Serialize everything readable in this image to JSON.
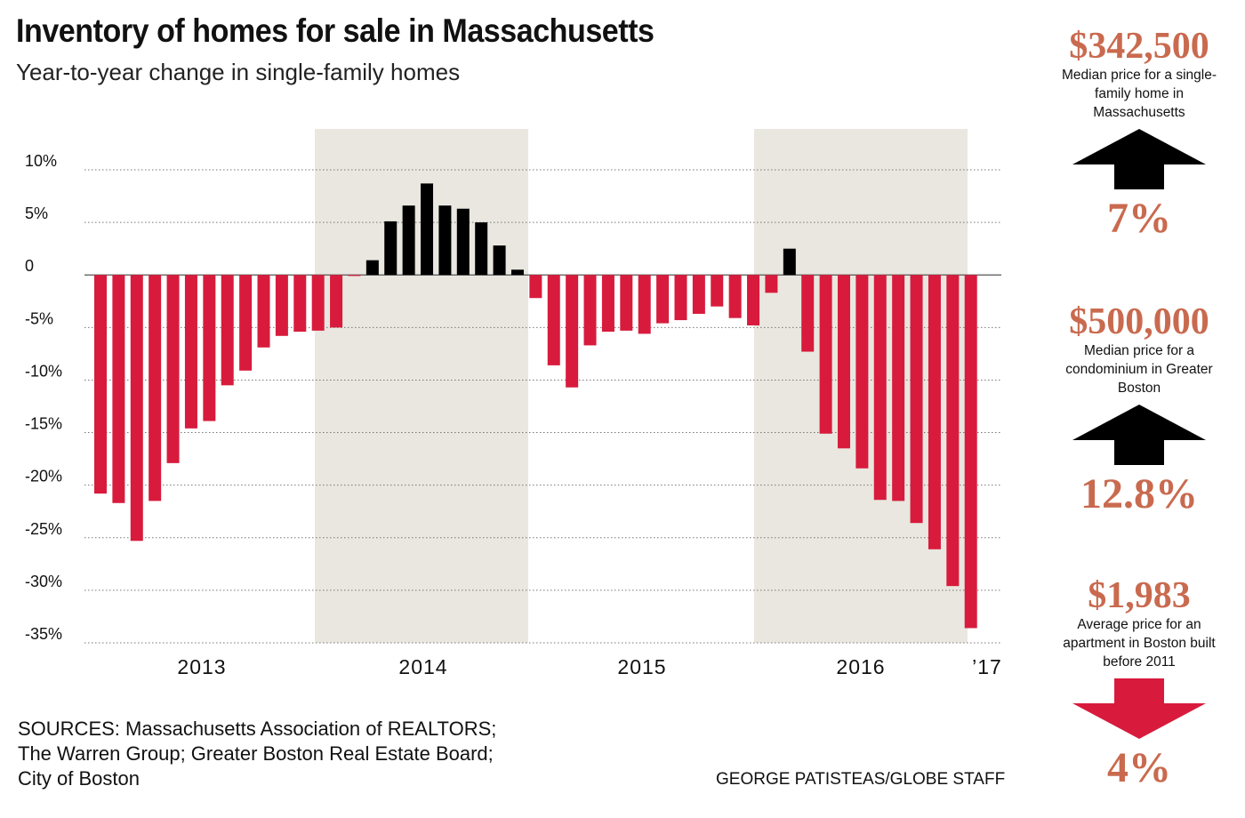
{
  "header": {
    "title": "Inventory of homes for sale in Massachusetts",
    "subtitle": "Year-to-year change in single-family homes"
  },
  "colors": {
    "negative": "#d81b3c",
    "positive": "#000000",
    "shade": "#e9e7df",
    "accent": "#c96a4f"
  },
  "chart_data": {
    "type": "bar",
    "title": "Inventory of homes for sale in Massachusetts",
    "subtitle": "Year-to-year change in single-family homes",
    "ylim": [
      -35,
      10
    ],
    "y_ticks": [
      10,
      5,
      0,
      -5,
      -10,
      -15,
      -20,
      -25,
      -30,
      -35
    ],
    "y_tick_labels": [
      "10%",
      "5%",
      "0",
      "-5%",
      "-10%",
      "-15%",
      "-20%",
      "-25%",
      "-30%",
      "-35%"
    ],
    "x_labels": [
      "2013",
      "2014",
      "2015",
      "2016",
      "’17"
    ],
    "grid": "dotted horizontal",
    "shaded_periods": [
      "2014",
      "2016"
    ],
    "values": [
      -20.8,
      -21.7,
      -25.3,
      -21.5,
      -17.9,
      -14.6,
      -13.9,
      -10.5,
      -9.1,
      -6.9,
      -5.8,
      -5.4,
      -5.3,
      -5.0,
      -0.1,
      1.4,
      5.1,
      6.6,
      8.7,
      6.6,
      6.3,
      5.0,
      2.8,
      0.5,
      -2.2,
      -8.6,
      -10.7,
      -6.7,
      -5.4,
      -5.3,
      -5.6,
      -4.6,
      -4.3,
      -3.7,
      -3.0,
      -4.1,
      -4.8,
      -1.7,
      2.5,
      -7.3,
      -15.1,
      -16.5,
      -18.4,
      -21.4,
      -21.5,
      -23.6,
      -26.1,
      -29.6,
      -33.6
    ],
    "colors_by_sign": {
      "negative": "#d81b3c",
      "positive": "#000000"
    }
  },
  "sidebar": {
    "items": [
      {
        "value": "$342,500",
        "description": "Median price for a single-family home in Massachusetts",
        "direction": "up",
        "change": "7%",
        "arrow_color": "#000000"
      },
      {
        "value": "$500,000",
        "description": "Median price for a condominium in Greater Boston",
        "direction": "up",
        "change": "12.8%",
        "arrow_color": "#000000"
      },
      {
        "value": "$1,983",
        "description": "Average price for an apartment in Boston built before 2011",
        "direction": "down",
        "change": "4%",
        "arrow_color": "#d81b3c"
      }
    ]
  },
  "footer": {
    "sources": "SOURCES: Massachusetts Association of REALTORS; The Warren Group; Greater Boston Real Estate Board; City of Boston",
    "credit": "GEORGE PATISTEAS/GLOBE STAFF"
  }
}
